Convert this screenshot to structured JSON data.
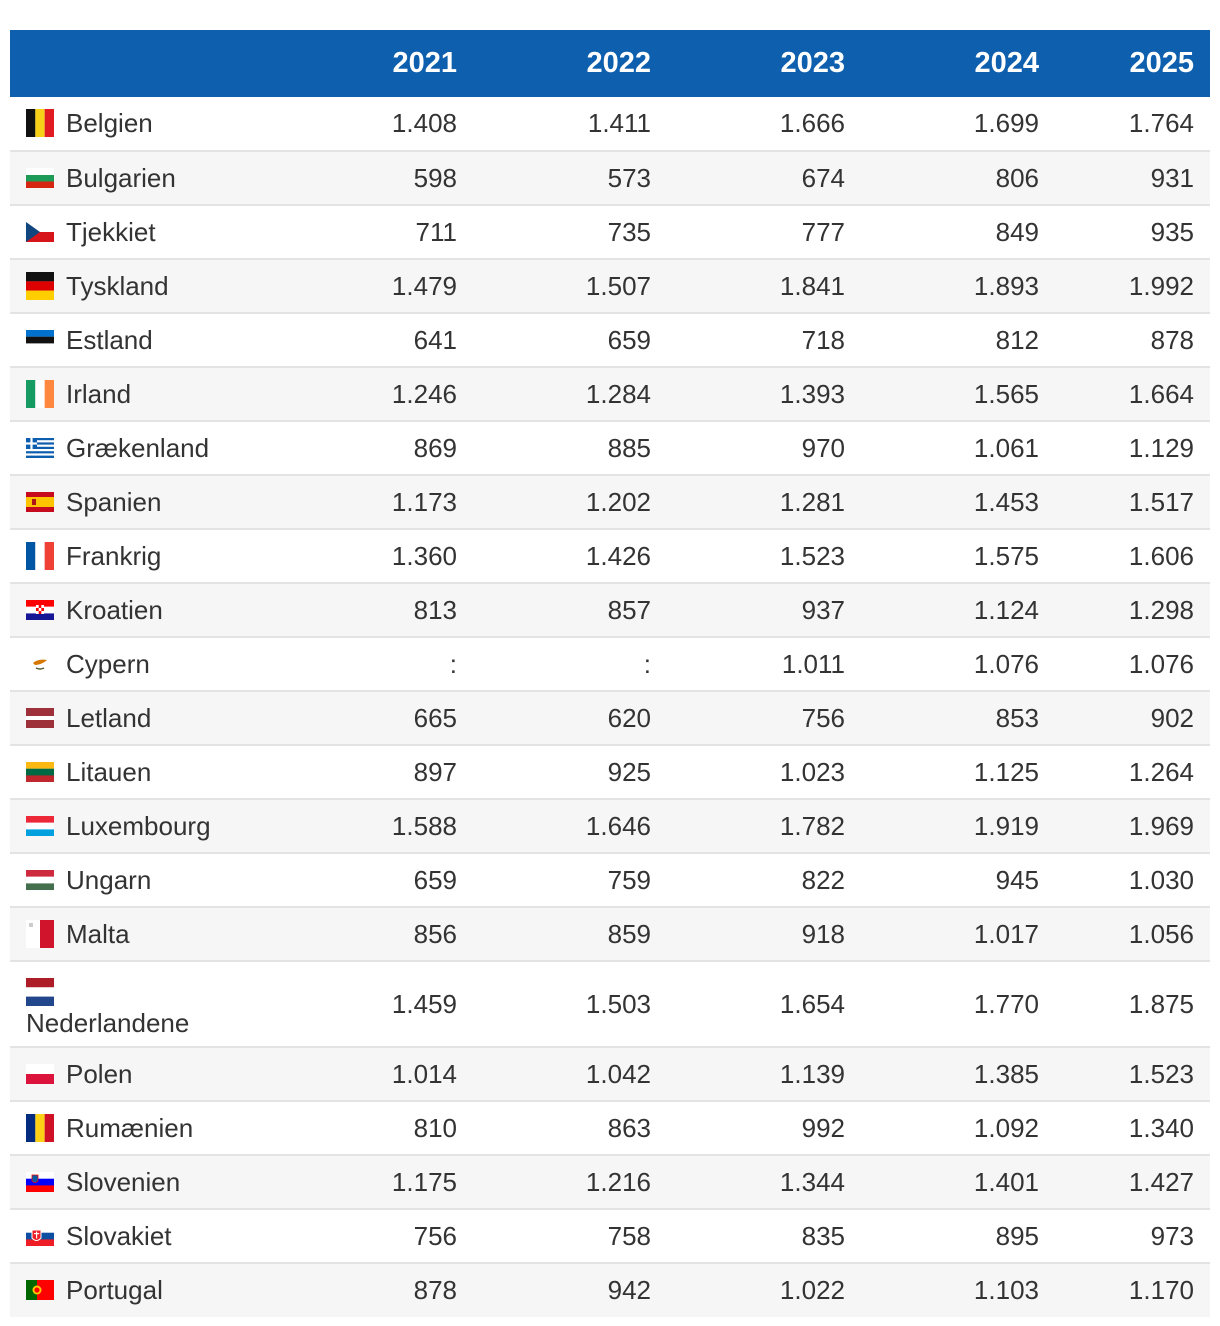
{
  "table": {
    "headers": [
      "",
      "2021",
      "2022",
      "2023",
      "2024",
      "2025"
    ],
    "rows": [
      {
        "country": "Belgien",
        "flag_icon": "belgium-flag-icon",
        "values": [
          "1.408",
          "1.411",
          "1.666",
          "1.699",
          "1.764"
        ]
      },
      {
        "country": "Bulgarien",
        "flag_icon": "bulgaria-flag-icon",
        "values": [
          "598",
          "573",
          "674",
          "806",
          "931"
        ]
      },
      {
        "country": "Tjekkiet",
        "flag_icon": "czechia-flag-icon",
        "values": [
          "711",
          "735",
          "777",
          "849",
          "935"
        ]
      },
      {
        "country": "Tyskland",
        "flag_icon": "germany-flag-icon",
        "values": [
          "1.479",
          "1.507",
          "1.841",
          "1.893",
          "1.992"
        ]
      },
      {
        "country": "Estland",
        "flag_icon": "estonia-flag-icon",
        "values": [
          "641",
          "659",
          "718",
          "812",
          "878"
        ]
      },
      {
        "country": "Irland",
        "flag_icon": "ireland-flag-icon",
        "values": [
          "1.246",
          "1.284",
          "1.393",
          "1.565",
          "1.664"
        ]
      },
      {
        "country": "Grækenland",
        "flag_icon": "greece-flag-icon",
        "values": [
          "869",
          "885",
          "970",
          "1.061",
          "1.129"
        ]
      },
      {
        "country": "Spanien",
        "flag_icon": "spain-flag-icon",
        "values": [
          "1.173",
          "1.202",
          "1.281",
          "1.453",
          "1.517"
        ]
      },
      {
        "country": "Frankrig",
        "flag_icon": "france-flag-icon",
        "values": [
          "1.360",
          "1.426",
          "1.523",
          "1.575",
          "1.606"
        ]
      },
      {
        "country": "Kroatien",
        "flag_icon": "croatia-flag-icon",
        "values": [
          "813",
          "857",
          "937",
          "1.124",
          "1.298"
        ]
      },
      {
        "country": "Cypern",
        "flag_icon": "cyprus-flag-icon",
        "values": [
          ":",
          ":",
          "1.011",
          "1.076",
          "1.076"
        ]
      },
      {
        "country": "Letland",
        "flag_icon": "latvia-flag-icon",
        "values": [
          "665",
          "620",
          "756",
          "853",
          "902"
        ]
      },
      {
        "country": "Litauen",
        "flag_icon": "lithuania-flag-icon",
        "values": [
          "897",
          "925",
          "1.023",
          "1.125",
          "1.264"
        ]
      },
      {
        "country": "Luxembourg",
        "flag_icon": "luxembourg-flag-icon",
        "values": [
          "1.588",
          "1.646",
          "1.782",
          "1.919",
          "1.969"
        ]
      },
      {
        "country": "Ungarn",
        "flag_icon": "hungary-flag-icon",
        "values": [
          "659",
          "759",
          "822",
          "945",
          "1.030"
        ]
      },
      {
        "country": "Malta",
        "flag_icon": "malta-flag-icon",
        "values": [
          "856",
          "859",
          "918",
          "1.017",
          "1.056"
        ]
      },
      {
        "country": "Nederlandene",
        "flag_icon": "netherlands-flag-icon",
        "values": [
          "1.459",
          "1.503",
          "1.654",
          "1.770",
          "1.875"
        ]
      },
      {
        "country": "Polen",
        "flag_icon": "poland-flag-icon",
        "values": [
          "1.014",
          "1.042",
          "1.139",
          "1.385",
          "1.523"
        ]
      },
      {
        "country": "Rumænien",
        "flag_icon": "romania-flag-icon",
        "values": [
          "810",
          "863",
          "992",
          "1.092",
          "1.340"
        ]
      },
      {
        "country": "Slovenien",
        "flag_icon": "slovenia-flag-icon",
        "values": [
          "1.175",
          "1.216",
          "1.344",
          "1.401",
          "1.427"
        ]
      },
      {
        "country": "Slovakiet",
        "flag_icon": "slovakia-flag-icon",
        "values": [
          "756",
          "758",
          "835",
          "895",
          "973"
        ]
      },
      {
        "country": "Portugal",
        "flag_icon": "portugal-flag-icon",
        "values": [
          "878",
          "942",
          "1.022",
          "1.103",
          "1.170"
        ]
      }
    ]
  },
  "colors": {
    "header_bg": "#0e5fad",
    "header_text": "#ffffff",
    "row_alt_bg": "#f6f6f6",
    "text": "#333333"
  }
}
